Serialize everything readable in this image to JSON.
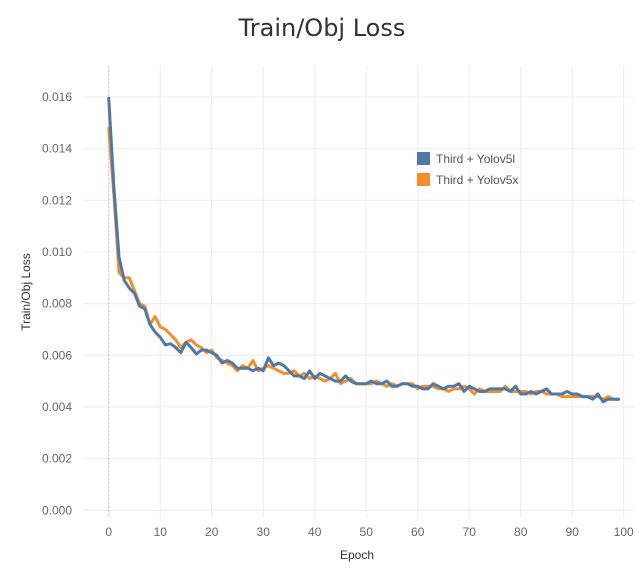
{
  "chart_data": {
    "type": "line",
    "title": "Train/Obj Loss",
    "xlabel": "Epoch",
    "ylabel": "Train/Obj Loss",
    "xlim": [
      -5,
      102
    ],
    "ylim": [
      -0.0003,
      0.0172
    ],
    "x_ticks": [
      0,
      10,
      20,
      30,
      40,
      50,
      60,
      70,
      80,
      90,
      100
    ],
    "x_tick_labels": [
      "0",
      "10",
      "20",
      "30",
      "40",
      "50",
      "60",
      "70",
      "80",
      "90",
      "100"
    ],
    "y_ticks": [
      0.0,
      0.002,
      0.004,
      0.006,
      0.008,
      0.01,
      0.012,
      0.014,
      0.016
    ],
    "y_tick_labels": [
      "0.000",
      "0.002",
      "0.004",
      "0.006",
      "0.008",
      "0.010",
      "0.012",
      "0.014",
      "0.016"
    ],
    "grid": true,
    "legend_position": "top-right",
    "series": [
      {
        "name": "Third + Yolov5l",
        "color": "#4e79a7",
        "x": [
          0,
          1,
          2,
          3,
          4,
          5,
          6,
          7,
          8,
          9,
          10,
          11,
          12,
          13,
          14,
          15,
          16,
          17,
          18,
          19,
          20,
          21,
          22,
          23,
          24,
          25,
          26,
          27,
          28,
          29,
          30,
          31,
          32,
          33,
          34,
          35,
          36,
          37,
          38,
          39,
          40,
          41,
          42,
          43,
          44,
          45,
          46,
          47,
          48,
          49,
          50,
          51,
          52,
          53,
          54,
          55,
          56,
          57,
          58,
          59,
          60,
          61,
          62,
          63,
          64,
          65,
          66,
          67,
          68,
          69,
          70,
          71,
          72,
          73,
          74,
          75,
          76,
          77,
          78,
          79,
          80,
          81,
          82,
          83,
          84,
          85,
          86,
          87,
          88,
          89,
          90,
          91,
          92,
          93,
          94,
          95,
          96,
          97,
          98,
          99
        ],
        "values": [
          0.01595,
          0.0125,
          0.0098,
          0.0089,
          0.0086,
          0.0084,
          0.0079,
          0.0078,
          0.0072,
          0.0069,
          0.0067,
          0.0064,
          0.00645,
          0.0063,
          0.0061,
          0.0065,
          0.0063,
          0.00605,
          0.0062,
          0.0062,
          0.0061,
          0.006,
          0.0057,
          0.0058,
          0.0057,
          0.0055,
          0.0055,
          0.0055,
          0.0054,
          0.0055,
          0.0054,
          0.0059,
          0.0056,
          0.0057,
          0.0056,
          0.0054,
          0.0052,
          0.0052,
          0.0051,
          0.0054,
          0.0051,
          0.0053,
          0.0052,
          0.0051,
          0.005,
          0.005,
          0.0052,
          0.005,
          0.0049,
          0.0049,
          0.0049,
          0.005,
          0.0049,
          0.0049,
          0.005,
          0.0048,
          0.0048,
          0.0049,
          0.0049,
          0.0048,
          0.0048,
          0.0047,
          0.0047,
          0.0049,
          0.0048,
          0.0047,
          0.0048,
          0.0048,
          0.0049,
          0.0046,
          0.0048,
          0.0047,
          0.0046,
          0.0046,
          0.0047,
          0.0047,
          0.0047,
          0.0047,
          0.0046,
          0.0048,
          0.0045,
          0.0045,
          0.0046,
          0.0045,
          0.0046,
          0.0047,
          0.0045,
          0.0045,
          0.0045,
          0.0046,
          0.0045,
          0.0045,
          0.0044,
          0.0044,
          0.0043,
          0.0045,
          0.0042,
          0.0043,
          0.0043,
          0.0043
        ]
      },
      {
        "name": "Third + Yolov5x",
        "color": "#f28e2b",
        "x": [
          0,
          1,
          2,
          3,
          4,
          5,
          6,
          7,
          8,
          9,
          10,
          11,
          12,
          13,
          14,
          15,
          16,
          17,
          18,
          19,
          20,
          21,
          22,
          23,
          24,
          25,
          26,
          27,
          28,
          29,
          30,
          31,
          32,
          33,
          34,
          35,
          36,
          37,
          38,
          39,
          40,
          41,
          42,
          43,
          44,
          45,
          46,
          47,
          48,
          49,
          50,
          51,
          52,
          53,
          54,
          55,
          56,
          57,
          58,
          59,
          60,
          61,
          62,
          63,
          64,
          65,
          66,
          67,
          68,
          69,
          70,
          71,
          72,
          73,
          74,
          75,
          76,
          77,
          78,
          79,
          80,
          81,
          82,
          83,
          84,
          85,
          86,
          87,
          88,
          89,
          90,
          91,
          92,
          93,
          94,
          95,
          96,
          97,
          98,
          99
        ],
        "values": [
          0.0148,
          0.0122,
          0.0092,
          0.009,
          0.009,
          0.0085,
          0.008,
          0.0079,
          0.0072,
          0.0075,
          0.0071,
          0.007,
          0.0068,
          0.0066,
          0.0063,
          0.0065,
          0.0066,
          0.0064,
          0.0063,
          0.0061,
          0.0062,
          0.0059,
          0.0058,
          0.0057,
          0.0056,
          0.0054,
          0.0056,
          0.0055,
          0.0058,
          0.0054,
          0.0055,
          0.0056,
          0.0055,
          0.0054,
          0.0053,
          0.0053,
          0.0054,
          0.0052,
          0.0053,
          0.0051,
          0.0052,
          0.0051,
          0.005,
          0.0051,
          0.0053,
          0.0049,
          0.005,
          0.0051,
          0.0049,
          0.0049,
          0.0049,
          0.0049,
          0.005,
          0.0049,
          0.0048,
          0.0049,
          0.0048,
          0.0049,
          0.0049,
          0.0049,
          0.0047,
          0.0048,
          0.0048,
          0.0048,
          0.0047,
          0.0047,
          0.0046,
          0.0047,
          0.0047,
          0.0048,
          0.0047,
          0.0045,
          0.0047,
          0.0046,
          0.0046,
          0.0046,
          0.0046,
          0.0048,
          0.0046,
          0.0046,
          0.0046,
          0.0046,
          0.0045,
          0.0046,
          0.0046,
          0.0045,
          0.0045,
          0.0045,
          0.0044,
          0.0044,
          0.0044,
          0.0044,
          0.0044,
          0.0044,
          0.0044,
          0.0044,
          0.0043,
          0.0044,
          0.0043,
          0.0043
        ]
      }
    ]
  }
}
